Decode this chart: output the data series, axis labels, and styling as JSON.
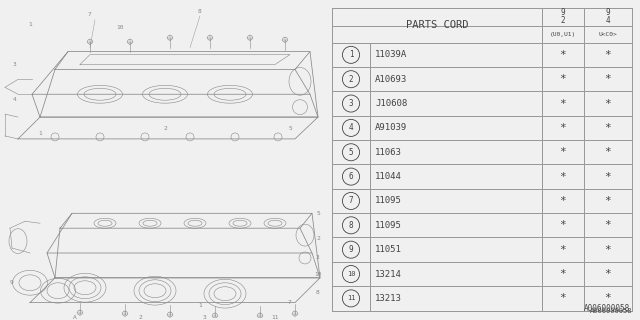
{
  "catalog_code": "A006000058",
  "bg_color": "#f0f0f0",
  "table": {
    "rows": [
      [
        "1",
        "11039A"
      ],
      [
        "2",
        "A10693"
      ],
      [
        "3",
        "J10608"
      ],
      [
        "4",
        "A91039"
      ],
      [
        "5",
        "11063"
      ],
      [
        "6",
        "11044"
      ],
      [
        "7",
        "11095"
      ],
      [
        "8",
        "11095"
      ],
      [
        "9",
        "11051"
      ],
      [
        "10",
        "13214"
      ],
      [
        "11",
        "13213"
      ]
    ]
  },
  "line_color": "#999999",
  "text_color": "#444444",
  "diagram_line_color": "#888888"
}
